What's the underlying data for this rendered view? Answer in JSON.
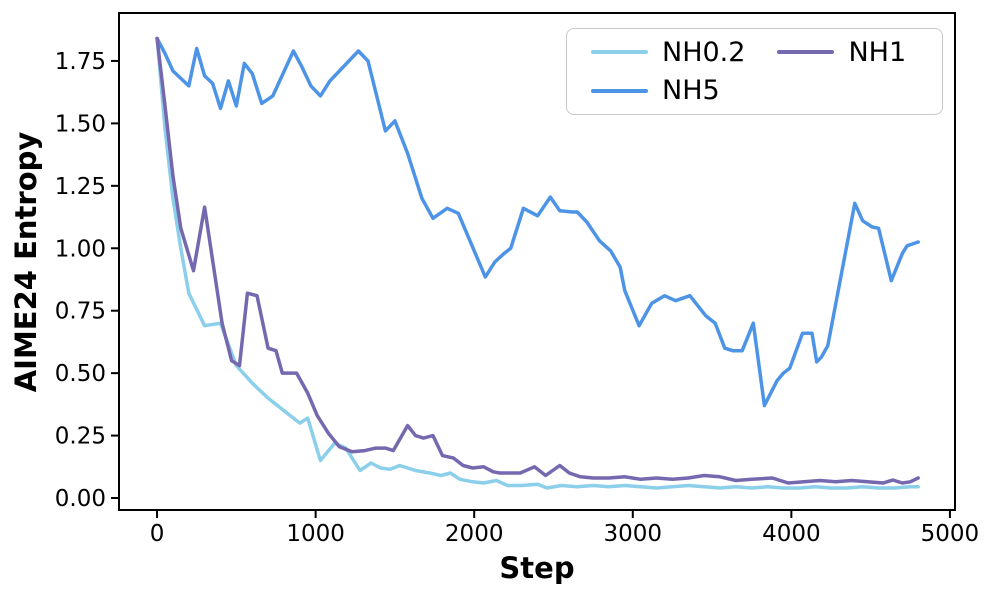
{
  "chart_data": {
    "type": "line",
    "title": "",
    "xlabel": "Step",
    "ylabel": "AIME24 Entropy",
    "xlim": [
      -240,
      5032
    ],
    "ylim": [
      -0.048,
      1.942
    ],
    "grid": false,
    "legend_position": "upper right",
    "legend_columns": 2,
    "x_ticks": [
      0,
      1000,
      2000,
      3000,
      4000,
      5000
    ],
    "x_tick_labels": [
      "0",
      "1000",
      "2000",
      "3000",
      "4000",
      "5000"
    ],
    "y_ticks": [
      0.0,
      0.25,
      0.5,
      0.75,
      1.0,
      1.25,
      1.5,
      1.75
    ],
    "y_tick_labels": [
      "0.00",
      "0.25",
      "0.50",
      "0.75",
      "1.00",
      "1.25",
      "1.50",
      "1.75"
    ],
    "series": [
      {
        "name": "NH0.2",
        "color": "#8BCFEA",
        "x": [
          0,
          50,
          100,
          150,
          200,
          300,
          400,
          500,
          600,
          700,
          800,
          900,
          950,
          1030,
          1120,
          1190,
          1280,
          1350,
          1410,
          1470,
          1530,
          1630,
          1720,
          1790,
          1850,
          1910,
          1990,
          2060,
          2140,
          2210,
          2300,
          2400,
          2460,
          2550,
          2650,
          2750,
          2850,
          2950,
          3050,
          3150,
          3250,
          3350,
          3450,
          3550,
          3650,
          3750,
          3850,
          3950,
          4050,
          4150,
          4250,
          4350,
          4450,
          4550,
          4650,
          4750,
          4800
        ],
        "y": [
          1.84,
          1.48,
          1.2,
          1.0,
          0.82,
          0.69,
          0.7,
          0.53,
          0.46,
          0.4,
          0.35,
          0.3,
          0.32,
          0.15,
          0.22,
          0.2,
          0.11,
          0.14,
          0.12,
          0.115,
          0.13,
          0.11,
          0.1,
          0.09,
          0.1,
          0.075,
          0.065,
          0.06,
          0.07,
          0.05,
          0.05,
          0.055,
          0.04,
          0.05,
          0.045,
          0.05,
          0.045,
          0.05,
          0.045,
          0.04,
          0.045,
          0.05,
          0.045,
          0.04,
          0.045,
          0.04,
          0.045,
          0.04,
          0.04,
          0.045,
          0.04,
          0.04,
          0.045,
          0.04,
          0.04,
          0.045,
          0.045
        ]
      },
      {
        "name": "NH5",
        "color": "#4D94E6",
        "x": [
          0,
          50,
          100,
          150,
          200,
          250,
          300,
          350,
          400,
          450,
          500,
          550,
          600,
          660,
          730,
          860,
          910,
          970,
          1030,
          1090,
          1270,
          1330,
          1440,
          1500,
          1580,
          1670,
          1740,
          1830,
          1900,
          2070,
          2130,
          2190,
          2230,
          2310,
          2400,
          2480,
          2540,
          2620,
          2650,
          2710,
          2790,
          2860,
          2920,
          2950,
          3040,
          3120,
          3200,
          3270,
          3360,
          3460,
          3520,
          3580,
          3630,
          3690,
          3760,
          3830,
          3910,
          3950,
          3990,
          4070,
          4130,
          4160,
          4190,
          4230,
          4400,
          4450,
          4510,
          4550,
          4630,
          4700,
          4730,
          4800
        ],
        "y": [
          1.84,
          1.78,
          1.71,
          1.68,
          1.65,
          1.8,
          1.69,
          1.66,
          1.56,
          1.67,
          1.57,
          1.74,
          1.7,
          1.58,
          1.61,
          1.79,
          1.73,
          1.65,
          1.61,
          1.67,
          1.79,
          1.75,
          1.47,
          1.51,
          1.38,
          1.2,
          1.12,
          1.16,
          1.14,
          0.885,
          0.945,
          0.98,
          1.0,
          1.16,
          1.13,
          1.205,
          1.15,
          1.145,
          1.145,
          1.105,
          1.03,
          0.99,
          0.925,
          0.83,
          0.69,
          0.78,
          0.81,
          0.79,
          0.81,
          0.73,
          0.7,
          0.6,
          0.59,
          0.59,
          0.7,
          0.37,
          0.47,
          0.5,
          0.52,
          0.66,
          0.66,
          0.545,
          0.565,
          0.61,
          1.18,
          1.11,
          1.085,
          1.08,
          0.87,
          0.98,
          1.01,
          1.025
        ]
      },
      {
        "name": "NH1",
        "color": "#7668AF",
        "x": [
          0,
          50,
          100,
          150,
          230,
          300,
          410,
          470,
          520,
          570,
          630,
          700,
          750,
          790,
          880,
          950,
          1010,
          1080,
          1150,
          1230,
          1310,
          1380,
          1440,
          1490,
          1580,
          1630,
          1680,
          1740,
          1800,
          1870,
          1930,
          1990,
          2060,
          2120,
          2160,
          2230,
          2290,
          2380,
          2450,
          2540,
          2600,
          2670,
          2750,
          2850,
          2950,
          3050,
          3150,
          3250,
          3350,
          3450,
          3550,
          3650,
          3750,
          3880,
          3980,
          4080,
          4180,
          4280,
          4380,
          4480,
          4580,
          4640,
          4700,
          4750,
          4800
        ],
        "y": [
          1.84,
          1.57,
          1.29,
          1.08,
          0.91,
          1.165,
          0.7,
          0.55,
          0.53,
          0.82,
          0.81,
          0.6,
          0.59,
          0.5,
          0.5,
          0.42,
          0.33,
          0.26,
          0.205,
          0.185,
          0.19,
          0.2,
          0.2,
          0.19,
          0.29,
          0.25,
          0.24,
          0.25,
          0.17,
          0.16,
          0.13,
          0.12,
          0.125,
          0.105,
          0.1,
          0.1,
          0.1,
          0.125,
          0.09,
          0.13,
          0.1,
          0.085,
          0.08,
          0.08,
          0.085,
          0.075,
          0.08,
          0.075,
          0.08,
          0.09,
          0.085,
          0.07,
          0.075,
          0.08,
          0.06,
          0.065,
          0.07,
          0.065,
          0.07,
          0.065,
          0.06,
          0.072,
          0.06,
          0.065,
          0.08
        ]
      }
    ]
  }
}
